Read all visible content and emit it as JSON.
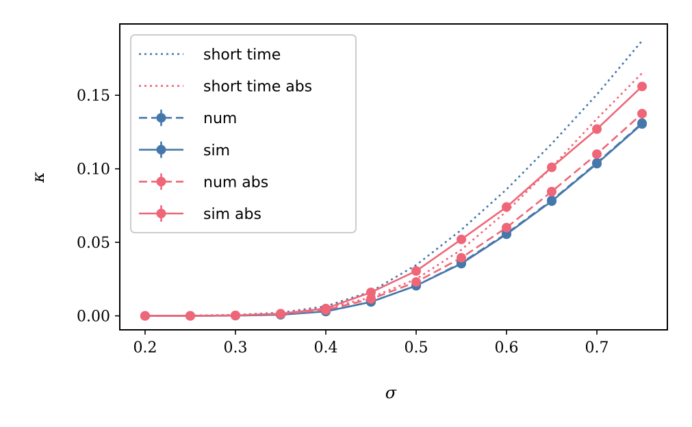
{
  "chart_data": {
    "type": "line",
    "title": "",
    "xlabel": "σ",
    "ylabel": "κ",
    "xlim": [
      0.172,
      0.778
    ],
    "ylim": [
      -0.0095,
      0.1985
    ],
    "xticks": [
      0.2,
      0.3,
      0.4,
      0.5,
      0.6,
      0.7
    ],
    "xtick_labels": [
      "0.2",
      "0.3",
      "0.4",
      "0.5",
      "0.6",
      "0.7"
    ],
    "yticks": [
      0.0,
      0.05,
      0.1,
      0.15
    ],
    "ytick_labels": [
      "0.00",
      "0.05",
      "0.10",
      "0.15"
    ],
    "grid": false,
    "legend_position": "upper-left",
    "x": [
      0.2,
      0.25,
      0.3,
      0.35,
      0.4,
      0.45,
      0.5,
      0.55,
      0.6,
      0.65,
      0.7,
      0.75
    ],
    "series": [
      {
        "name": "short time",
        "color": "#4477aa",
        "style": "dotted",
        "markers": false,
        "values": [
          0.0,
          0.0002,
          0.0007,
          0.0022,
          0.0065,
          0.0165,
          0.0345,
          0.0585,
          0.086,
          0.117,
          0.1505,
          0.187
        ]
      },
      {
        "name": "short time abs",
        "color": "#ee6677",
        "style": "dotted",
        "markers": false,
        "values": [
          0.0,
          0.0001,
          0.0005,
          0.0018,
          0.0052,
          0.0125,
          0.025,
          0.045,
          0.071,
          0.101,
          0.134,
          0.165
        ]
      },
      {
        "name": "num",
        "color": "#4477aa",
        "style": "dashed",
        "markers": true,
        "values": [
          0.0,
          0.0,
          0.0002,
          0.0008,
          0.003,
          0.0095,
          0.0205,
          0.036,
          0.056,
          0.0785,
          0.104,
          0.131
        ]
      },
      {
        "name": "sim",
        "color": "#4477aa",
        "style": "solid",
        "markers": true,
        "values": [
          0.0,
          0.0,
          0.0002,
          0.0008,
          0.003,
          0.0095,
          0.0205,
          0.0355,
          0.0555,
          0.078,
          0.1035,
          0.1305
        ]
      },
      {
        "name": "num abs",
        "color": "#ee6677",
        "style": "dashed",
        "markers": true,
        "values": [
          0.0,
          0.0,
          0.0003,
          0.0012,
          0.004,
          0.0115,
          0.023,
          0.0395,
          0.06,
          0.0845,
          0.11,
          0.1375
        ]
      },
      {
        "name": "sim abs",
        "color": "#ee6677",
        "style": "solid",
        "markers": true,
        "values": [
          0.0,
          0.0,
          0.0003,
          0.0015,
          0.005,
          0.016,
          0.0305,
          0.052,
          0.074,
          0.101,
          0.127,
          0.156
        ]
      }
    ]
  }
}
